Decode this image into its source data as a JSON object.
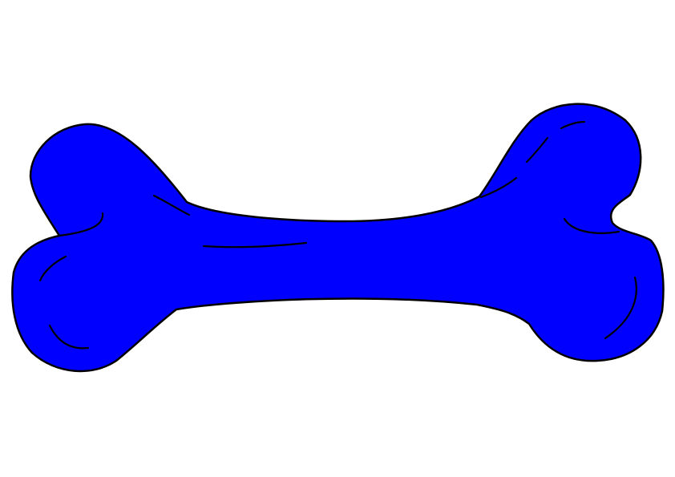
{
  "illustration": {
    "subject": "bone",
    "colors": {
      "background": "#ffffff",
      "fill": "#0000ff",
      "outline": "#000000"
    }
  }
}
